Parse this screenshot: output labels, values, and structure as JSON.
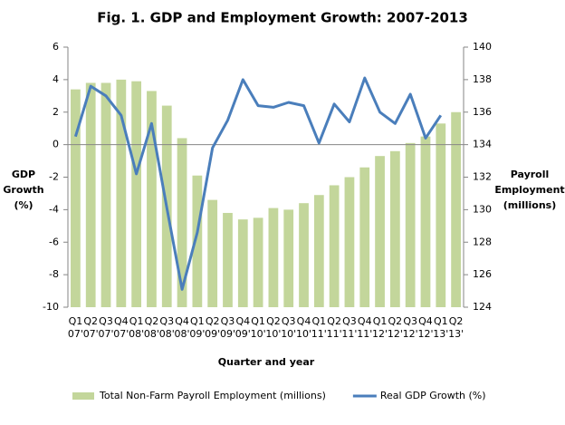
{
  "chart_data": {
    "type": "bar_line",
    "title": "Fig. 1. GDP and Employment Growth: 2007-2013",
    "xlabel": "Quarter and year",
    "ylabel": "GDP Growth (%)",
    "y2label": "Payroll Employment (millions)",
    "categories": [
      "Q1 07'",
      "Q2 07'",
      "Q3 07'",
      "Q4 07'",
      "Q1 08'",
      "Q2 08'",
      "Q3 08'",
      "Q4 08'",
      "Q1 09'",
      "Q2 09'",
      "Q3 09'",
      "Q4 09'",
      "Q1 10'",
      "Q2 10'",
      "Q3 10'",
      "Q4 10'",
      "Q1 11'",
      "Q2 11'",
      "Q3 11'",
      "Q4 11'",
      "Q1 12'",
      "Q2 12'",
      "Q3 12'",
      "Q4 12'",
      "Q1 13'",
      "Q2 13'"
    ],
    "series": [
      {
        "name": "Total Non-Farm Payroll Employment (millions)",
        "color": "#c3d69b",
        "axis": "y2",
        "kind": "bar",
        "values": [
          137.4,
          137.8,
          137.8,
          138.0,
          137.9,
          137.3,
          136.4,
          134.4,
          132.1,
          130.6,
          129.8,
          129.4,
          129.5,
          130.1,
          130.0,
          130.4,
          130.9,
          131.5,
          132.0,
          132.6,
          133.3,
          133.6,
          134.1,
          134.5,
          135.3,
          136.0
        ]
      },
      {
        "name": "Real GDP Growth (%)",
        "color": "#4a7ebb",
        "axis": "y",
        "kind": "line",
        "values": [
          0.5,
          3.6,
          3.0,
          1.8,
          -1.8,
          1.3,
          -3.9,
          -8.9,
          -5.4,
          -0.2,
          1.5,
          4.0,
          2.4,
          2.3,
          2.6,
          2.4,
          0.1,
          2.5,
          1.4,
          4.1,
          2.0,
          1.3,
          3.1,
          0.4,
          1.8,
          null
        ]
      }
    ],
    "ylim": [
      -10,
      6
    ],
    "yticks": [
      -10,
      -8,
      -6,
      -4,
      -2,
      0,
      2,
      4,
      6
    ],
    "y2lim": [
      124,
      140
    ],
    "y2ticks": [
      124,
      126,
      128,
      130,
      132,
      134,
      136,
      138,
      140
    ],
    "legend": "bottom"
  }
}
